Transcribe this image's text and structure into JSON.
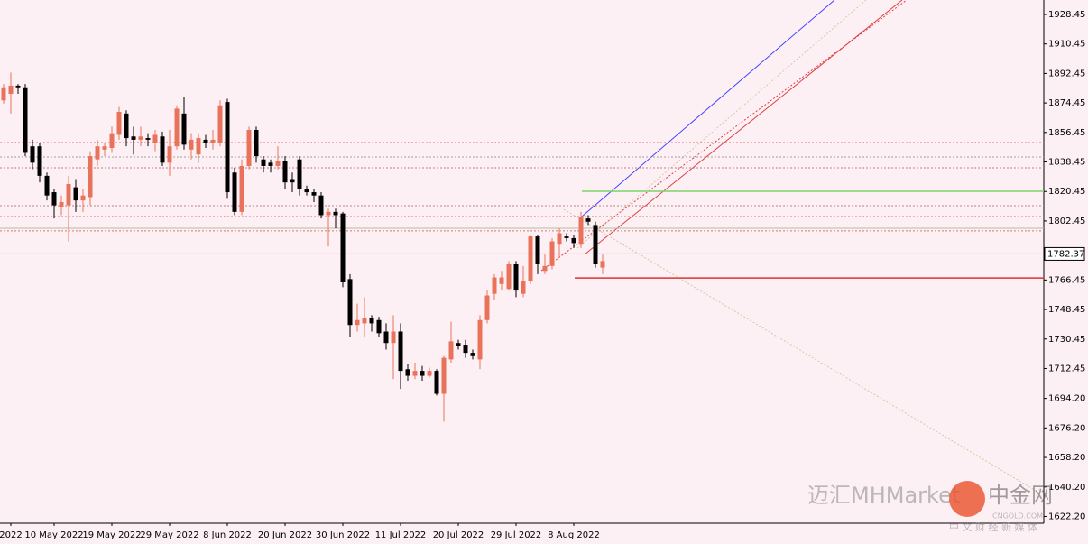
{
  "chart_data": {
    "type": "candlestick",
    "categories": [
      null,
      "2022",
      null,
      null,
      null,
      null,
      null,
      "10 May 2022",
      null,
      null,
      null,
      null,
      null,
      null,
      null,
      "19 May 2022",
      null,
      null,
      null,
      null,
      null,
      null,
      null,
      "29 May 2022",
      null,
      null,
      null,
      null,
      null,
      null,
      null,
      "8 Jun 2022",
      null,
      null,
      null,
      null,
      null,
      null,
      null,
      "20 Jun 2022",
      null,
      null,
      null,
      null,
      null,
      null,
      null,
      "30 Jun 2022",
      null,
      null,
      null,
      null,
      null,
      null,
      null,
      "11 Jul 2022",
      null,
      null,
      null,
      null,
      null,
      null,
      null,
      "20 Jul 2022",
      null,
      null,
      null,
      null,
      null,
      null,
      null,
      "29 Jul 2022",
      null,
      null,
      null,
      null,
      null,
      null,
      null,
      "8 Aug 2022",
      null,
      null,
      null,
      null
    ],
    "open": [
      1876,
      1880,
      1885,
      1884,
      1848,
      1848,
      1830,
      1820,
      1811,
      1812,
      1823,
      1815,
      1817,
      1840,
      1846,
      1847,
      1855,
      1868,
      1854,
      1852,
      1853,
      1850,
      1854,
      1838,
      1848,
      1868,
      1846,
      1843,
      1852,
      1850,
      1850,
      1875,
      1832,
      1808,
      1836,
      1858,
      1840,
      1838,
      1836,
      1839,
      1828,
      1840,
      1822,
      1820,
      1818,
      1806,
      1808,
      1807,
      1767,
      1739,
      1740,
      1743,
      1742,
      1735,
      1728,
      1735,
      1712,
      1708,
      1711,
      1708,
      1711,
      1697,
      1718,
      1728,
      1727,
      1722,
      1718,
      1742,
      1758,
      1764,
      1761,
      1776,
      1758,
      1766,
      1793,
      1772,
      1775,
      1788,
      1793,
      1792,
      1788,
      1804,
      1800,
      1774
    ],
    "high": [
      1886,
      1893,
      1886,
      1886,
      1852,
      1850,
      1832,
      1822,
      1818,
      1830,
      1828,
      1822,
      1845,
      1852,
      1850,
      1860,
      1872,
      1870,
      1860,
      1860,
      1856,
      1858,
      1857,
      1858,
      1873,
      1878,
      1856,
      1856,
      1855,
      1858,
      1876,
      1877,
      1835,
      1840,
      1860,
      1860,
      1842,
      1840,
      1848,
      1842,
      1832,
      1842,
      1824,
      1822,
      1820,
      1810,
      1810,
      1808,
      1770,
      1752,
      1756,
      1745,
      1744,
      1740,
      1745,
      1740,
      1715,
      1716,
      1714,
      1713,
      1712,
      1720,
      1741,
      1730,
      1730,
      1724,
      1745,
      1760,
      1770,
      1772,
      1778,
      1778,
      1775,
      1794,
      1794,
      1782,
      1792,
      1798,
      1795,
      1794,
      1808,
      1806,
      1802,
      1782
    ],
    "low": [
      1874,
      1868,
      1880,
      1842,
      1834,
      1826,
      1815,
      1804,
      1806,
      1790,
      1808,
      1808,
      1812,
      1836,
      1842,
      1844,
      1852,
      1848,
      1843,
      1848,
      1848,
      1845,
      1836,
      1830,
      1846,
      1846,
      1840,
      1838,
      1847,
      1846,
      1848,
      1816,
      1806,
      1806,
      1834,
      1838,
      1832,
      1832,
      1834,
      1822,
      1820,
      1818,
      1818,
      1814,
      1804,
      1787,
      1798,
      1762,
      1732,
      1735,
      1732,
      1735,
      1732,
      1724,
      1706,
      1700,
      1705,
      1706,
      1705,
      1707,
      1696,
      1680,
      1716,
      1724,
      1719,
      1718,
      1712,
      1740,
      1754,
      1760,
      1760,
      1756,
      1756,
      1764,
      1770,
      1770,
      1773,
      1780,
      1790,
      1786,
      1786,
      1800,
      1774,
      1770
    ],
    "close": [
      1884,
      1885,
      1884,
      1844,
      1838,
      1830,
      1818,
      1812,
      1814,
      1825,
      1815,
      1818,
      1842,
      1848,
      1848,
      1856,
      1869,
      1853,
      1852,
      1854,
      1852,
      1855,
      1838,
      1848,
      1871,
      1849,
      1852,
      1853,
      1850,
      1852,
      1873,
      1820,
      1808,
      1836,
      1858,
      1842,
      1836,
      1836,
      1839,
      1826,
      1826,
      1822,
      1820,
      1818,
      1806,
      1808,
      1806,
      1765,
      1739,
      1742,
      1743,
      1740,
      1734,
      1728,
      1735,
      1711,
      1708,
      1711,
      1708,
      1711,
      1697,
      1719,
      1729,
      1726,
      1722,
      1720,
      1742,
      1757,
      1768,
      1768,
      1776,
      1760,
      1766,
      1793,
      1776,
      1775,
      1790,
      1795,
      1792,
      1789,
      1805,
      1802,
      1776,
      1778
    ],
    "up_color": "#e8735a",
    "down_color": "#000000",
    "ylim": [
      1618.05,
      1937.25
    ],
    "yticks": [
      1928.45,
      1910.45,
      1892.45,
      1874.45,
      1856.45,
      1838.45,
      1820.45,
      1802.45,
      1766.45,
      1748.45,
      1730.45,
      1712.45,
      {
        "value": 1694.2,
        "label": "1694.20"
      },
      {
        "value": 1676.2,
        "label": "1676.20"
      },
      {
        "value": 1658.2,
        "label": "1658.20"
      },
      {
        "value": 1640.2,
        "label": "1640.20"
      },
      {
        "value": 1622.2,
        "label": "1622.20"
      }
    ],
    "last_price": 1782.37,
    "levels": [
      {
        "value": 1850.3,
        "color": "#e07070",
        "style": "dotted"
      },
      {
        "value": 1841.5,
        "color": "#a0a0a0",
        "style": "dotted"
      },
      {
        "value": 1834.9,
        "color": "#c08080",
        "style": "dotted"
      },
      {
        "value": 1820.6,
        "color": "#7ed36a",
        "style": "solid",
        "from": 80
      },
      {
        "value": 1811.8,
        "color": "#c08080",
        "style": "dotted"
      },
      {
        "value": 1805.2,
        "color": "#e07070",
        "style": "dotted"
      },
      {
        "value": 1798.0,
        "color": "#b0c0a0",
        "style": "solid"
      },
      {
        "value": 1796.4,
        "color": "#e07070",
        "style": "dotted"
      },
      {
        "value": 1767.7,
        "color": "#e03030",
        "style": "solid",
        "from": 79
      }
    ]
  },
  "watermark": {
    "text": "迈汇MHMarket",
    "logo": "中金网",
    "site": "CNGOLD.COM",
    "slogan": "中 文 财 经 新 媒 体"
  }
}
